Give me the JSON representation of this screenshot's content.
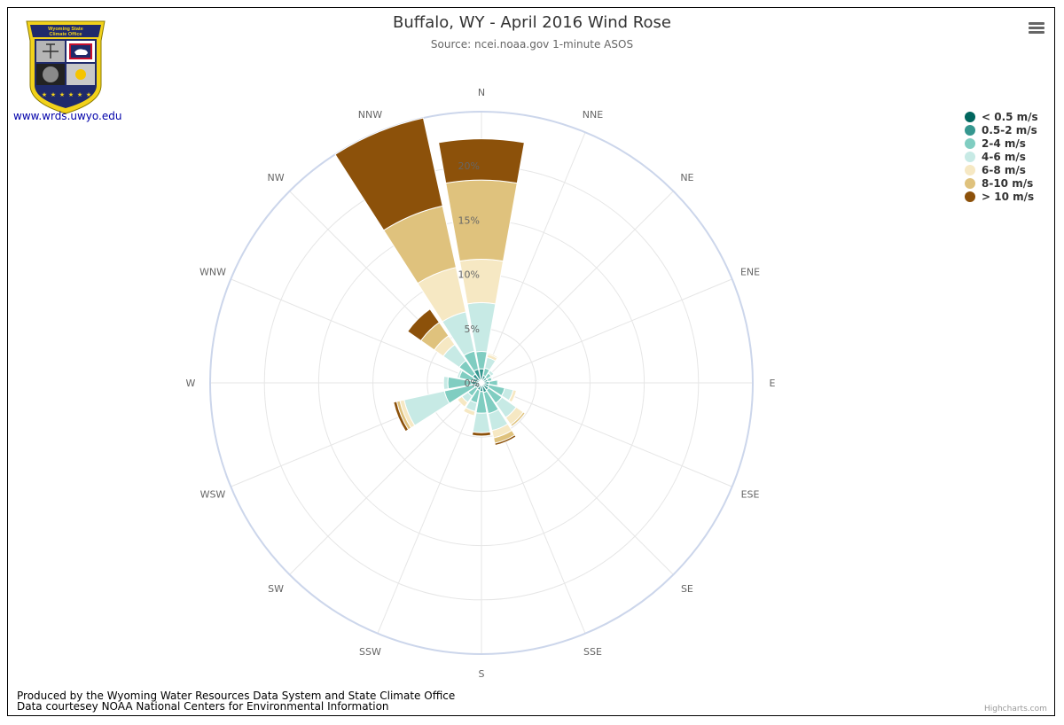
{
  "header": {
    "title": "Buffalo, WY - April 2016 Wind Rose",
    "subtitle": "Source: ncei.noaa.gov 1-minute ASOS"
  },
  "logo": {
    "text_line1": "Wyoming State",
    "text_line2": "Climate Office",
    "link": "www.wrds.uwyo.edu"
  },
  "menu": {
    "icon": "hamburger-menu-icon"
  },
  "footer": {
    "line1": "Produced by the Wyoming Water Resources Data System and State Climate Office",
    "line2": "Data courtesey NOAA National Centers for Environmental Information",
    "credits": "Highcharts.com"
  },
  "chart_data": {
    "type": "windrose",
    "title": "Buffalo, WY - April 2016 Wind Rose",
    "subtitle": "Source: ncei.noaa.gov 1-minute ASOS",
    "directions": [
      "N",
      "NNE",
      "NE",
      "ENE",
      "E",
      "ESE",
      "SE",
      "SSE",
      "S",
      "SSW",
      "SW",
      "WSW",
      "W",
      "WNW",
      "NW",
      "NNW"
    ],
    "radial_ticks": [
      "0%",
      "5%",
      "10%",
      "15%",
      "20%"
    ],
    "radial_tick_values": [
      0,
      5,
      10,
      15,
      20
    ],
    "radial_max": 25,
    "stacking": "normal",
    "legend_position": "top-right",
    "series": [
      {
        "name": "< 0.5 m/s",
        "color": "#01665e",
        "values": [
          0.3,
          0.2,
          0.2,
          0.2,
          0.2,
          0.2,
          0.2,
          0.2,
          0.2,
          0.2,
          0.2,
          0.2,
          0.2,
          0.2,
          0.2,
          0.3
        ]
      },
      {
        "name": "0.5-2 m/s",
        "color": "#35978f",
        "values": [
          1.0,
          0.5,
          0.4,
          0.4,
          0.5,
          0.5,
          0.6,
          0.7,
          0.6,
          0.5,
          0.4,
          0.5,
          0.7,
          0.6,
          0.8,
          1.0
        ]
      },
      {
        "name": "2-4 m/s",
        "color": "#80cdc1",
        "values": [
          1.6,
          0.7,
          0.5,
          0.4,
          0.8,
          1.5,
          1.5,
          2.0,
          2.0,
          1.2,
          0.9,
          2.8,
          2.2,
          1.3,
          1.5,
          1.7
        ]
      },
      {
        "name": "4-6 m/s",
        "color": "#c7eae5",
        "values": [
          4.5,
          1.0,
          0.3,
          0.1,
          0.1,
          0.8,
          1.6,
          1.6,
          1.8,
          0.8,
          0.7,
          3.8,
          0.4,
          0.2,
          1.8,
          3.7
        ]
      },
      {
        "name": "6-8 m/s",
        "color": "#f6e8c3",
        "values": [
          4.0,
          0.3,
          0.0,
          0.0,
          0.0,
          0.3,
          0.8,
          0.7,
          0.0,
          0.4,
          0.5,
          0.4,
          0.0,
          0.0,
          1.0,
          4.2
        ]
      },
      {
        "name": "8-10 m/s",
        "color": "#dfc27d",
        "values": [
          7.3,
          0.1,
          0.0,
          0.0,
          0.0,
          0.0,
          0.2,
          0.5,
          0.0,
          0.0,
          0.0,
          0.3,
          0.0,
          0.0,
          1.5,
          5.8
        ]
      },
      {
        "name": "> 10 m/s",
        "color": "#8c510a",
        "values": [
          3.8,
          0.0,
          0.0,
          0.0,
          0.0,
          0.0,
          0.0,
          0.2,
          0.3,
          0.0,
          0.0,
          0.3,
          0.0,
          0.0,
          1.5,
          8.3
        ]
      }
    ]
  }
}
